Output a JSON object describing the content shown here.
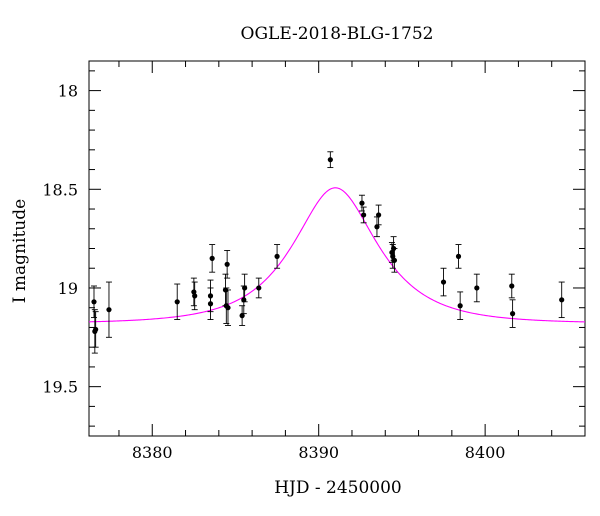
{
  "chart_data": {
    "type": "scatter",
    "title": "OGLE-2018-BLG-1752",
    "xlabel": "HJD - 2450000",
    "ylabel": "I magnitude",
    "xlim": [
      8376.2,
      8406.0
    ],
    "ylim": [
      19.75,
      17.85
    ],
    "y_inverted": true,
    "x_ticks": [
      8380,
      8390,
      8400
    ],
    "x_tick_labels": [
      "8380",
      "8390",
      "8400"
    ],
    "x_minor_step": 2,
    "y_ticks": [
      18.0,
      18.5,
      19.0,
      19.5
    ],
    "y_tick_labels": [
      "18",
      "18.5",
      "19",
      "19.5"
    ],
    "y_minor_step": 0.1,
    "grid": false,
    "colors": {
      "points": "#000000",
      "model": "#ff00ff",
      "frame": "#000000"
    },
    "series": [
      {
        "type": "scatter",
        "points": [
          {
            "x": 8376.5,
            "y": 19.07,
            "err": 0.08
          },
          {
            "x": 8376.6,
            "y": 19.21,
            "err": 0.09
          },
          {
            "x": 8376.55,
            "y": 19.22,
            "err": 0.11
          },
          {
            "x": 8377.4,
            "y": 19.11,
            "err": 0.14
          },
          {
            "x": 8381.5,
            "y": 19.07,
            "err": 0.09
          },
          {
            "x": 8382.5,
            "y": 19.02,
            "err": 0.07
          },
          {
            "x": 8382.55,
            "y": 19.04,
            "err": 0.07
          },
          {
            "x": 8383.5,
            "y": 19.04,
            "err": 0.08
          },
          {
            "x": 8383.5,
            "y": 19.08,
            "err": 0.08
          },
          {
            "x": 8383.6,
            "y": 18.85,
            "err": 0.07
          },
          {
            "x": 8384.4,
            "y": 19.01,
            "err": 0.08
          },
          {
            "x": 8384.45,
            "y": 19.09,
            "err": 0.09
          },
          {
            "x": 8384.5,
            "y": 18.88,
            "err": 0.07
          },
          {
            "x": 8384.55,
            "y": 19.1,
            "err": 0.09
          },
          {
            "x": 8385.4,
            "y": 19.14,
            "err": 0.05
          },
          {
            "x": 8385.5,
            "y": 19.06,
            "err": 0.07
          },
          {
            "x": 8385.55,
            "y": 19.0,
            "err": 0.07
          },
          {
            "x": 8386.4,
            "y": 19.0,
            "err": 0.05
          },
          {
            "x": 8387.5,
            "y": 18.84,
            "err": 0.06
          },
          {
            "x": 8390.7,
            "y": 18.35,
            "err": 0.04
          },
          {
            "x": 8392.6,
            "y": 18.57,
            "err": 0.04
          },
          {
            "x": 8392.7,
            "y": 18.63,
            "err": 0.04
          },
          {
            "x": 8393.5,
            "y": 18.69,
            "err": 0.05
          },
          {
            "x": 8393.6,
            "y": 18.63,
            "err": 0.05
          },
          {
            "x": 8394.4,
            "y": 18.82,
            "err": 0.05
          },
          {
            "x": 8394.45,
            "y": 18.84,
            "err": 0.06
          },
          {
            "x": 8394.5,
            "y": 18.8,
            "err": 0.06
          },
          {
            "x": 8394.55,
            "y": 18.86,
            "err": 0.06
          },
          {
            "x": 8397.5,
            "y": 18.97,
            "err": 0.07
          },
          {
            "x": 8398.4,
            "y": 18.84,
            "err": 0.06
          },
          {
            "x": 8398.5,
            "y": 19.09,
            "err": 0.07
          },
          {
            "x": 8399.5,
            "y": 19.0,
            "err": 0.07
          },
          {
            "x": 8401.6,
            "y": 18.99,
            "err": 0.06
          },
          {
            "x": 8401.65,
            "y": 19.13,
            "err": 0.07
          },
          {
            "x": 8404.6,
            "y": 19.06,
            "err": 0.09
          }
        ]
      },
      {
        "type": "line",
        "model": {
          "t0": 8391.0,
          "u0": 0.6,
          "tE": 4.0,
          "m_base": 19.18
        }
      }
    ]
  }
}
